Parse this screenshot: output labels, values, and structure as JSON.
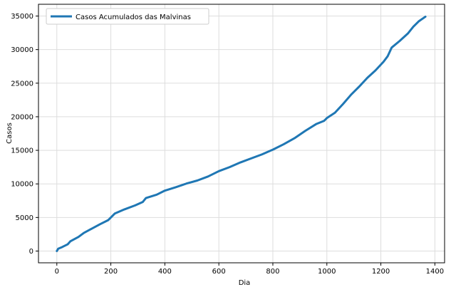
{
  "chart_data": {
    "type": "line",
    "xlabel": "Dia",
    "ylabel": "Casos",
    "xlim": [
      -68,
      1436
    ],
    "ylim": [
      -1750,
      36750
    ],
    "x_ticks": [
      0,
      200,
      400,
      600,
      800,
      1000,
      1200,
      1400
    ],
    "y_ticks": [
      0,
      5000,
      10000,
      15000,
      20000,
      25000,
      30000,
      35000
    ],
    "grid": true,
    "legend_position": "upper-left",
    "series": [
      {
        "name": "Casos Acumulados das Malvinas",
        "color": "#1f77b4",
        "points": [
          [
            0,
            0
          ],
          [
            5,
            350
          ],
          [
            20,
            600
          ],
          [
            40,
            1000
          ],
          [
            50,
            1450
          ],
          [
            80,
            2100
          ],
          [
            100,
            2700
          ],
          [
            130,
            3350
          ],
          [
            160,
            4000
          ],
          [
            190,
            4600
          ],
          [
            215,
            5600
          ],
          [
            250,
            6200
          ],
          [
            290,
            6800
          ],
          [
            318,
            7300
          ],
          [
            330,
            7900
          ],
          [
            370,
            8400
          ],
          [
            400,
            9000
          ],
          [
            440,
            9500
          ],
          [
            480,
            10050
          ],
          [
            520,
            10500
          ],
          [
            560,
            11100
          ],
          [
            600,
            11900
          ],
          [
            640,
            12500
          ],
          [
            680,
            13200
          ],
          [
            720,
            13800
          ],
          [
            760,
            14400
          ],
          [
            800,
            15100
          ],
          [
            840,
            15900
          ],
          [
            880,
            16800
          ],
          [
            920,
            17900
          ],
          [
            960,
            18900
          ],
          [
            990,
            19400
          ],
          [
            1000,
            19800
          ],
          [
            1030,
            20600
          ],
          [
            1060,
            21900
          ],
          [
            1090,
            23300
          ],
          [
            1120,
            24500
          ],
          [
            1150,
            25800
          ],
          [
            1180,
            26900
          ],
          [
            1210,
            28200
          ],
          [
            1225,
            29000
          ],
          [
            1240,
            30300
          ],
          [
            1270,
            31300
          ],
          [
            1300,
            32400
          ],
          [
            1320,
            33400
          ],
          [
            1340,
            34200
          ],
          [
            1365,
            34900
          ]
        ]
      }
    ]
  }
}
